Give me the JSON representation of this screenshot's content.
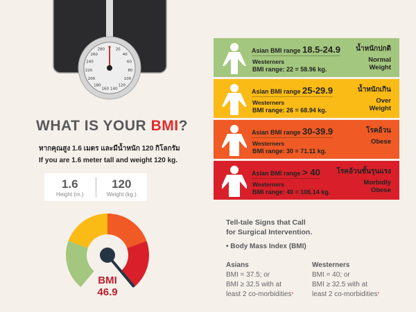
{
  "scale": {
    "dial_numbers": [
      "0",
      "20",
      "40",
      "60",
      "80",
      "100",
      "120",
      "140",
      "160",
      "180",
      "200",
      "220",
      "240",
      "260",
      "280"
    ]
  },
  "title": {
    "prefix": "WHAT IS YOUR ",
    "highlight": "BMI",
    "suffix": "?"
  },
  "subtitle_thai": "หากคุณสูง 1.6 เมตร และมีน้ำหนัก 120 กิโลกรัม",
  "subtitle_en": "If you are 1.6 meter tall and weight 120 kg.",
  "inputs": {
    "height_value": "1.6",
    "height_label": "Height (m.)",
    "weight_value": "120",
    "weight_label": "Weight (kg.)"
  },
  "gauge": {
    "label": "BMI",
    "value": "46.9",
    "bmi": 46.9,
    "colors": [
      "#a3c77e",
      "#fbbb16",
      "#f05a24",
      "#d9202a"
    ],
    "needle_color": "#263544"
  },
  "cards": [
    {
      "asian": "Asian BMI range ",
      "range": "18.5-24.9",
      "west1": "Westerners",
      "west2": "BMI range: 22 = 58.96 kg.",
      "thai": "น้ำหนักปกติ",
      "en1": "Normal",
      "en2": "Weight",
      "color": "#a3c77e"
    },
    {
      "asian": "Asian BMI range ",
      "range": "25-29.9",
      "west1": "Westerners",
      "west2": "BMI range: 26 = 68.94 kg.",
      "thai": "น้ำหนักเกิน",
      "en1": "Over",
      "en2": "Weight",
      "color": "#fbbb16"
    },
    {
      "asian": "Asian BMI range ",
      "range": "30-39.9",
      "west1": "Westerners",
      "west2": "BMI range: 30 = 71.11 kg.",
      "thai": "โรคอ้วน",
      "en1": "Obese",
      "en2": "",
      "color": "#f05a24"
    },
    {
      "asian": "Asian BMI range ",
      "range": "> 40",
      "west1": "Westerners",
      "west2": "BMI range: 40 = 106.14 kg.",
      "thai": "โรคอ้วนขั้นรุนแรง",
      "en1": "Morbidly",
      "en2": "Obese",
      "color": "#d9202a"
    }
  ],
  "signs": {
    "line1": "Tell-tale Signs that Call",
    "line2": "for Surgical Intervention.",
    "bullet": "• Body Mass Index (BMI)"
  },
  "asians": {
    "head": "Asians",
    "l1": "BMI = 37.5; or",
    "l2": "BMI ≥ 32.5 with at",
    "l3": "least 2 co-morbidities",
    "star": "*"
  },
  "westerners": {
    "head": "Westerners",
    "l1": "BMI = 40; or",
    "l2": "BMI ≥ 32.5 with at",
    "l3": "least 2 co-morbidities",
    "star": "*"
  }
}
